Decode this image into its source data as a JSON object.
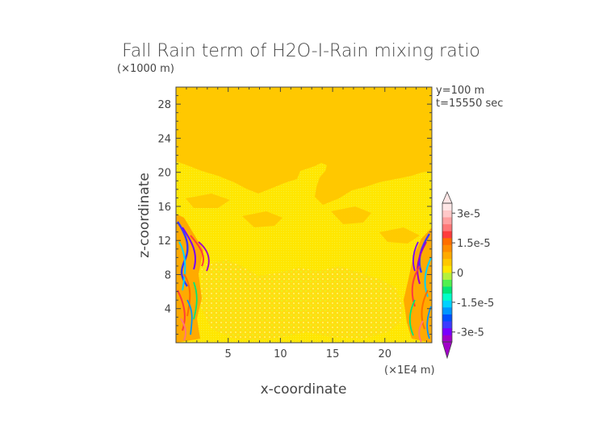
{
  "chart_data": {
    "type": "heatmap",
    "title": "Fall Rain term of H2O-I-Rain mixing ratio",
    "xlabel": "x-coordinate",
    "ylabel": "z-coordinate",
    "x_unit": "(×1E4 m)",
    "y_unit": "(×1000 m)",
    "annotations": [
      "y=100 m",
      "t=15550 sec"
    ],
    "xlim": [
      0,
      24.5
    ],
    "ylim": [
      0,
      30
    ],
    "x_ticks": [
      5,
      10,
      15,
      20
    ],
    "y_ticks": [
      4,
      8,
      12,
      16,
      20,
      24,
      28
    ],
    "grid": false,
    "colorbar": {
      "range": [
        -3.5e-05,
        3.5e-05
      ],
      "labels": [
        "3e-5",
        "1.5e-5",
        "0",
        "-1.5e-5",
        "-3e-5"
      ],
      "label_values": [
        3e-05,
        1.5e-05,
        0,
        -1.5e-05,
        -3e-05
      ],
      "colors": [
        "#a000c8",
        "#7800ff",
        "#3c3cff",
        "#0050ff",
        "#0096ff",
        "#00d2ff",
        "#00ffc8",
        "#00e678",
        "#50f050",
        "#b4f03c",
        "#ffe600",
        "#ffc800",
        "#ffaa00",
        "#ff8c00",
        "#ff6e00",
        "#ff3c3c",
        "#ff7878",
        "#ffa0a0",
        "#ffc8c8",
        "#ffe6e6"
      ]
    },
    "regions": [
      {
        "description_value": "background",
        "value": 0
      },
      {
        "x_range": [
          0,
          24.5
        ],
        "z_range": [
          1,
          20.5
        ],
        "value": 3e-06
      },
      {
        "x_range": [
          0,
          4
        ],
        "z_range": [
          0.5,
          14.5
        ],
        "value": -2.5e-05,
        "mixed_sign": true
      },
      {
        "x_range": [
          21.5,
          24.5
        ],
        "z_range": [
          1,
          14
        ],
        "value": -2.5e-05,
        "mixed_sign": true
      }
    ]
  }
}
